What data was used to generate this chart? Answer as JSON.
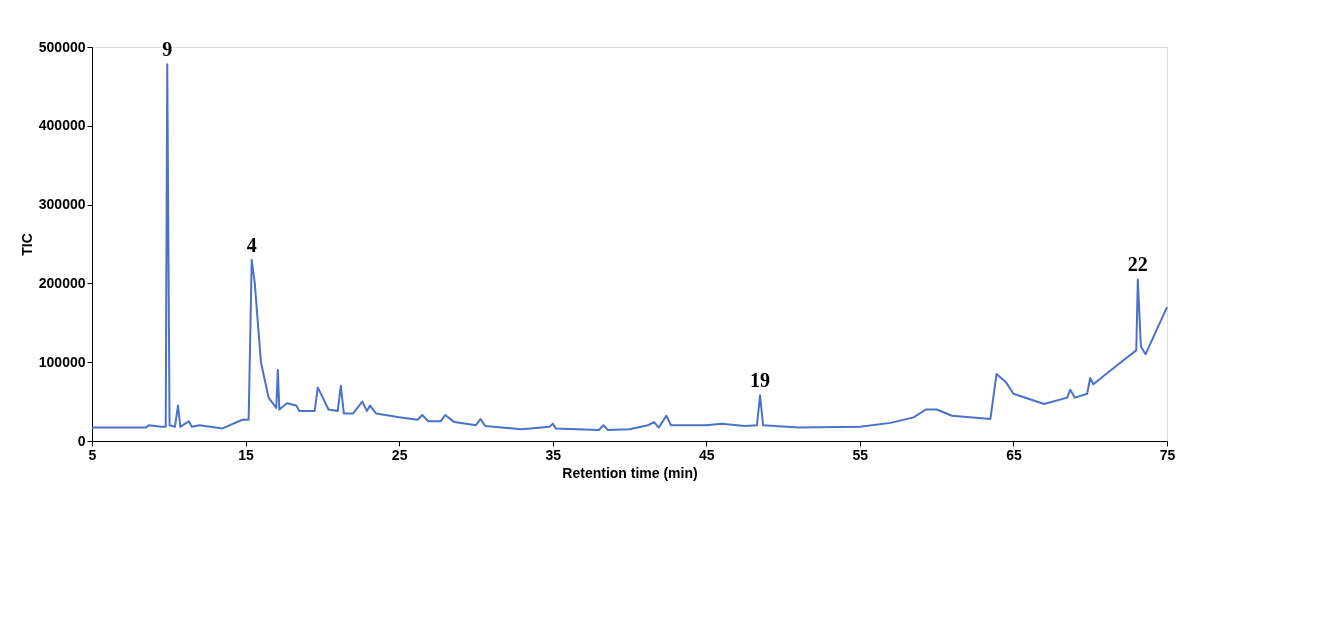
{
  "chart_data": {
    "type": "line",
    "xlabel": "Retention time (min)",
    "ylabel": "TIC",
    "xlim": [
      5,
      75
    ],
    "xticks": [
      5,
      15,
      25,
      35,
      45,
      55,
      65,
      75
    ],
    "ylim": [
      0,
      500000
    ],
    "yticks": [
      0,
      100000,
      200000,
      300000,
      400000,
      500000
    ],
    "grid": false,
    "marker": "none",
    "line_style": "solid",
    "series": [
      {
        "color": "#4a72c8",
        "x": [
          5,
          8.5,
          8.7,
          9.5,
          9.8,
          9.9,
          10.05,
          10.4,
          10.6,
          10.75,
          11.3,
          11.5,
          12,
          13.5,
          14.2,
          14.8,
          15.2,
          15.4,
          15.6,
          16.0,
          16.5,
          17.0,
          17.1,
          17.2,
          17.7,
          18.3,
          18.5,
          19.5,
          19.7,
          20.4,
          21.0,
          21.2,
          21.4,
          22.0,
          22.6,
          22.9,
          23.1,
          23.5,
          25,
          26.2,
          26.5,
          26.9,
          27.7,
          28.0,
          28.6,
          30.0,
          30.3,
          30.6,
          33,
          34.8,
          35,
          35.2,
          38,
          38.3,
          38.6,
          40,
          41.2,
          41.6,
          41.9,
          42.4,
          42.7,
          45,
          46,
          47.5,
          48.3,
          48.5,
          48.7,
          51,
          55,
          57,
          58.5,
          59.3,
          60,
          61,
          63.5,
          63.9,
          64.5,
          65,
          67,
          68.5,
          68.7,
          69,
          69.8,
          70,
          70.2,
          72,
          73,
          73.1,
          73.3,
          73.6,
          75
        ],
        "values": [
          17000,
          17000,
          20000,
          18000,
          18000,
          478000,
          20000,
          18000,
          45000,
          18000,
          25000,
          18000,
          20000,
          16000,
          22000,
          27000,
          27000,
          230000,
          200000,
          100000,
          55000,
          42000,
          90000,
          40000,
          48000,
          45000,
          38000,
          38000,
          68000,
          40000,
          38000,
          70000,
          35000,
          35000,
          50000,
          38000,
          45000,
          35000,
          30000,
          27000,
          33000,
          25000,
          25000,
          33000,
          24000,
          20000,
          28000,
          19000,
          15000,
          18000,
          22000,
          16000,
          14000,
          20000,
          14000,
          15000,
          20000,
          24000,
          17000,
          32000,
          20000,
          20000,
          22000,
          19000,
          20000,
          58000,
          20000,
          17000,
          18000,
          23000,
          30000,
          40000,
          40000,
          32000,
          28000,
          85000,
          75000,
          60000,
          47000,
          55000,
          65000,
          55000,
          60000,
          80000,
          72000,
          100000,
          115000,
          205000,
          120000,
          110000,
          170000
        ]
      }
    ],
    "annotations": [
      {
        "text": "9",
        "x": 9.9,
        "y": 478000
      },
      {
        "text": "4",
        "x": 15.4,
        "y": 230000
      },
      {
        "text": "19",
        "x": 48.5,
        "y": 58000
      },
      {
        "text": "22",
        "x": 73.1,
        "y": 205000
      }
    ]
  }
}
